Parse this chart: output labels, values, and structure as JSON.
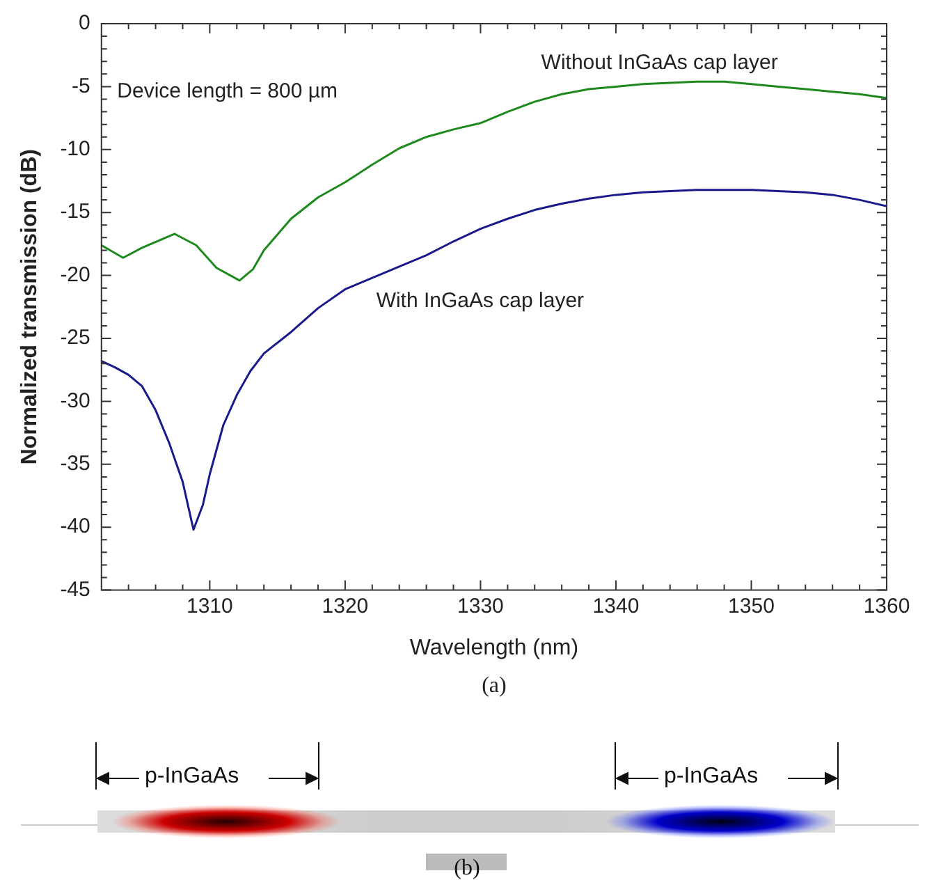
{
  "chart_data": {
    "type": "line",
    "xlabel": "Wavelength (nm)",
    "ylabel": "Normalized transmission (dB)",
    "xlim": [
      1302,
      1360
    ],
    "xticks": [
      {
        "value": 1304,
        "label": null
      },
      {
        "value": 1306,
        "label": null
      },
      {
        "value": 1308,
        "label": null
      },
      1310,
      {
        "value": 1312,
        "label": null
      },
      {
        "value": 1314,
        "label": null
      },
      {
        "value": 1316,
        "label": null
      },
      {
        "value": 1318,
        "label": null
      },
      1320,
      {
        "value": 1322,
        "label": null
      },
      {
        "value": 1324,
        "label": null
      },
      {
        "value": 1326,
        "label": null
      },
      {
        "value": 1328,
        "label": null
      },
      1330,
      {
        "value": 1332,
        "label": null
      },
      {
        "value": 1334,
        "label": null
      },
      {
        "value": 1336,
        "label": null
      },
      {
        "value": 1338,
        "label": null
      },
      1340,
      {
        "value": 1342,
        "label": null
      },
      {
        "value": 1344,
        "label": null
      },
      {
        "value": 1346,
        "label": null
      },
      {
        "value": 1348,
        "label": null
      },
      1350,
      {
        "value": 1352,
        "label": null
      },
      {
        "value": 1354,
        "label": null
      },
      {
        "value": 1356,
        "label": null
      },
      {
        "value": 1358,
        "label": null
      },
      1360
    ],
    "ylim": [
      -45,
      0
    ],
    "yticks": [
      -45,
      {
        "value": -44,
        "label": null
      },
      {
        "value": -43,
        "label": null
      },
      {
        "value": -42,
        "label": null
      },
      {
        "value": -41,
        "label": null
      },
      -40,
      {
        "value": -39,
        "label": null
      },
      {
        "value": -38,
        "label": null
      },
      {
        "value": -37,
        "label": null
      },
      {
        "value": -36,
        "label": null
      },
      -35,
      {
        "value": -34,
        "label": null
      },
      {
        "value": -33,
        "label": null
      },
      {
        "value": -32,
        "label": null
      },
      {
        "value": -31,
        "label": null
      },
      -30,
      {
        "value": -29,
        "label": null
      },
      {
        "value": -28,
        "label": null
      },
      {
        "value": -27,
        "label": null
      },
      {
        "value": -26,
        "label": null
      },
      -25,
      {
        "value": -24,
        "label": null
      },
      {
        "value": -23,
        "label": null
      },
      {
        "value": -22,
        "label": null
      },
      {
        "value": -21,
        "label": null
      },
      -20,
      {
        "value": -19,
        "label": null
      },
      {
        "value": -18,
        "label": null
      },
      {
        "value": -17,
        "label": null
      },
      {
        "value": -16,
        "label": null
      },
      -15,
      {
        "value": -14,
        "label": null
      },
      {
        "value": -13,
        "label": null
      },
      {
        "value": -12,
        "label": null
      },
      {
        "value": -11,
        "label": null
      },
      -10,
      {
        "value": -9,
        "label": null
      },
      {
        "value": -8,
        "label": null
      },
      {
        "value": -7,
        "label": null
      },
      {
        "value": -6,
        "label": null
      },
      -5,
      {
        "value": -4,
        "label": null
      },
      {
        "value": -3,
        "label": null
      },
      {
        "value": -2,
        "label": null
      },
      {
        "value": -1,
        "label": null
      },
      0
    ],
    "grid": false,
    "legend": false,
    "marker": "none",
    "line_style": "solid",
    "series": [
      {
        "name": "Without InGaAs cap layer",
        "color": "#1e8a1e",
        "x": [
          1302,
          1303.6,
          1305,
          1307.4,
          1309,
          1310.5,
          1312.2,
          1313.2,
          1314,
          1316,
          1318,
          1320,
          1322,
          1324,
          1326,
          1328,
          1330,
          1332,
          1334,
          1336,
          1338,
          1340,
          1342,
          1344,
          1346,
          1348,
          1350,
          1352,
          1354,
          1356,
          1358,
          1360
        ],
        "values": [
          -17.6,
          -18.6,
          -17.8,
          -16.7,
          -17.6,
          -19.4,
          -20.4,
          -19.5,
          -18,
          -15.5,
          -13.8,
          -12.6,
          -11.2,
          -9.9,
          -9,
          -8.4,
          -7.9,
          -7,
          -6.2,
          -5.6,
          -5.2,
          -5,
          -4.8,
          -4.7,
          -4.6,
          -4.6,
          -4.8,
          -5,
          -5.2,
          -5.4,
          -5.6,
          -5.9
        ]
      },
      {
        "name": "With InGaAs cap layer",
        "color": "#1a1a8c",
        "x": [
          1302,
          1303,
          1304,
          1305,
          1306,
          1307,
          1308,
          1308.8,
          1309.5,
          1310,
          1311,
          1312,
          1313,
          1314,
          1316,
          1318,
          1320,
          1322,
          1324,
          1326,
          1328,
          1330,
          1332,
          1334,
          1336,
          1338,
          1340,
          1342,
          1344,
          1346,
          1348,
          1350,
          1352,
          1354,
          1356,
          1358,
          1360
        ],
        "values": [
          -26.8,
          -27.3,
          -27.9,
          -28.8,
          -30.7,
          -33.3,
          -36.4,
          -40.2,
          -38.2,
          -35.8,
          -31.9,
          -29.5,
          -27.6,
          -26.2,
          -24.5,
          -22.6,
          -21.1,
          -20.2,
          -19.3,
          -18.4,
          -17.3,
          -16.3,
          -15.5,
          -14.8,
          -14.3,
          -13.9,
          -13.6,
          -13.4,
          -13.3,
          -13.2,
          -13.2,
          -13.2,
          -13.3,
          -13.4,
          -13.6,
          -14,
          -14.5
        ]
      }
    ],
    "annotations": [
      "Device length = 800 µm",
      "(a)",
      "p-InGaAs",
      "p-InGaAs",
      "(b)"
    ]
  }
}
